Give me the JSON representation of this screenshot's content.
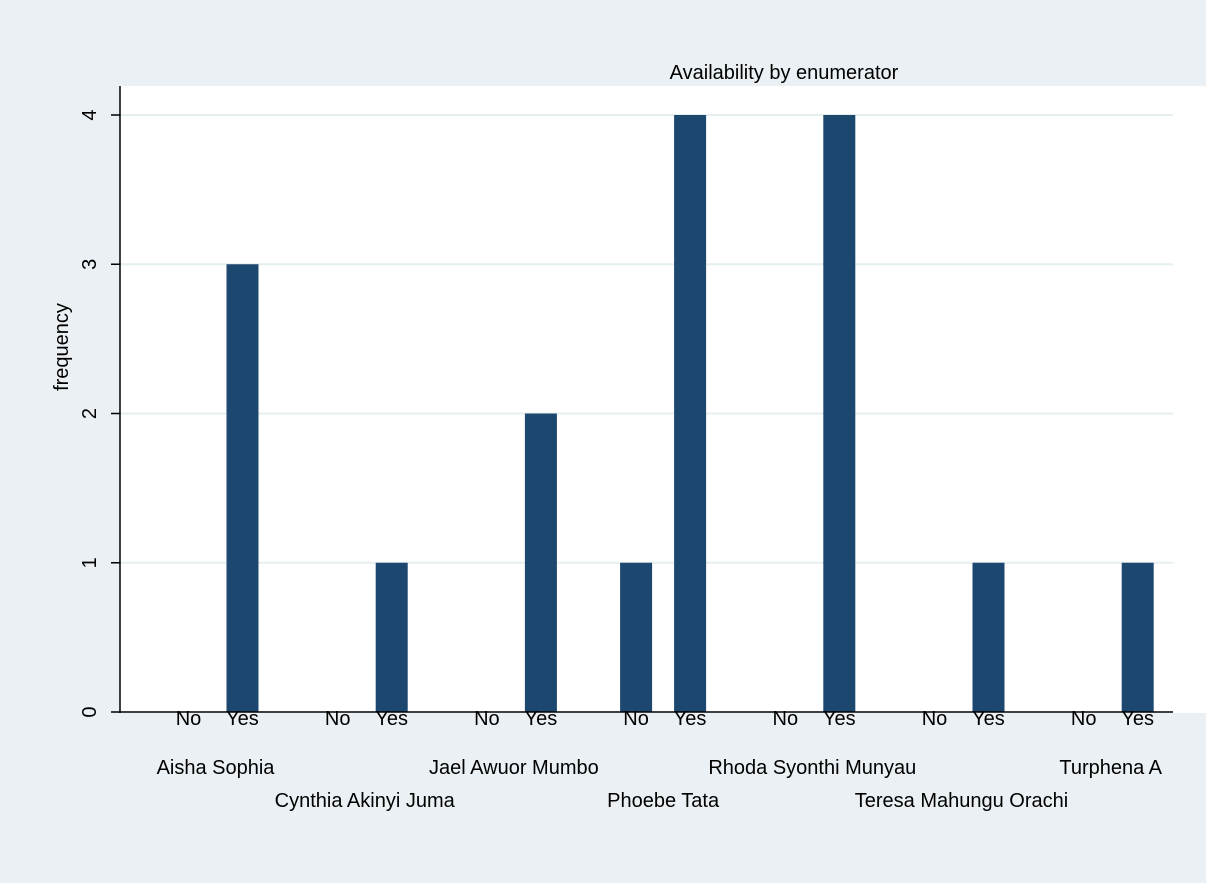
{
  "chart_data": {
    "type": "bar",
    "title": "Availability by enumerator",
    "ylabel": "frequency",
    "xlabel": "",
    "ylim": [
      0,
      4
    ],
    "yticks": [
      0,
      1,
      2,
      3,
      4
    ],
    "grid": true,
    "colors": {
      "bar": "#1c476f",
      "plot_background": "#ffffff",
      "outer_background": "#eaf0f3",
      "gridline": "#e6efef"
    },
    "categories": [
      "Aisha Sophia",
      "Cynthia Akinyi Juma",
      "Jael Awuor Mumbo",
      "Phoebe Tata",
      "Rhoda Syonthi Munyau",
      "Teresa Mahungu Orachi",
      "Turphena A"
    ],
    "subcategories": [
      "No",
      "Yes"
    ],
    "series": [
      {
        "name": "No",
        "values": [
          0,
          0,
          0,
          1,
          0,
          0,
          0
        ]
      },
      {
        "name": "Yes",
        "values": [
          3,
          1,
          2,
          4,
          4,
          1,
          1
        ]
      }
    ]
  }
}
